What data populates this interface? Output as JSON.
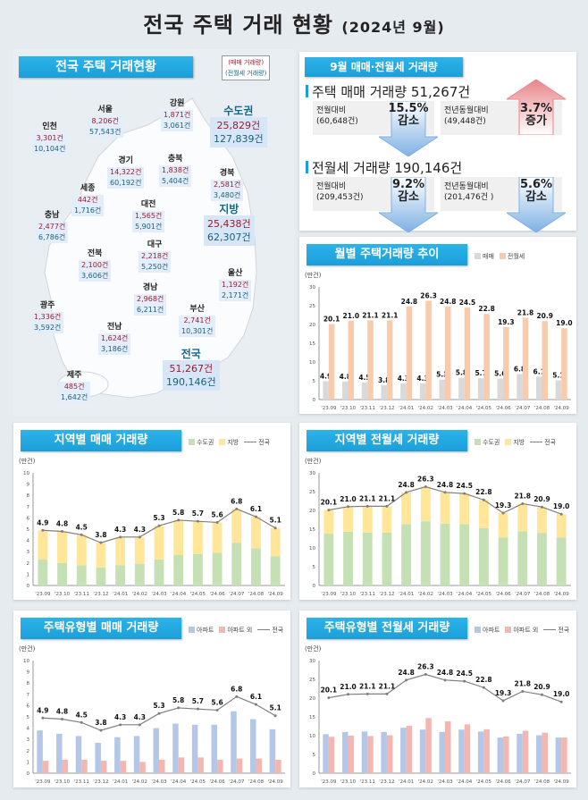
{
  "title": {
    "main": "전국 주택 거래 현황",
    "period": "(2024년 9월)"
  },
  "map": {
    "heading": "전국 주택 거래현황",
    "legend": {
      "sale": "(매매 거래량)",
      "rent": "(전월세 거래량)"
    },
    "regions": [
      {
        "name": "서울",
        "sale": "8,206건",
        "rent": "57,543건"
      },
      {
        "name": "인천",
        "sale": "3,301건",
        "rent": "10,104건"
      },
      {
        "name": "강원",
        "sale": "1,871건",
        "rent": "3,061건"
      },
      {
        "name": "경기",
        "sale": "14,322건",
        "rent": "60,192건"
      },
      {
        "name": "충북",
        "sale": "1,838건",
        "rent": "5,404건"
      },
      {
        "name": "경북",
        "sale": "2,581건",
        "rent": "3,480건"
      },
      {
        "name": "세종",
        "sale": "442건",
        "rent": "1,716건"
      },
      {
        "name": "대전",
        "sale": "1,565건",
        "rent": "5,901건"
      },
      {
        "name": "충남",
        "sale": "2,477건",
        "rent": "6,786건"
      },
      {
        "name": "대구",
        "sale": "2,218건",
        "rent": "5,250건"
      },
      {
        "name": "전북",
        "sale": "2,100건",
        "rent": "3,606건"
      },
      {
        "name": "울산",
        "sale": "1,192건",
        "rent": "2,171건"
      },
      {
        "name": "경남",
        "sale": "2,968건",
        "rent": "6,211건"
      },
      {
        "name": "광주",
        "sale": "1,336건",
        "rent": "3,592건"
      },
      {
        "name": "부산",
        "sale": "2,741건",
        "rent": "10,301건"
      },
      {
        "name": "전남",
        "sale": "1,624건",
        "rent": "3,186건"
      },
      {
        "name": "제주",
        "sale": "485건",
        "rent": "1,642건"
      }
    ],
    "totals": [
      {
        "name": "수도권",
        "sale": "25,829건",
        "rent": "127,839건"
      },
      {
        "name": "지방",
        "sale": "25,438건",
        "rent": "62,307건"
      },
      {
        "name": "전국",
        "sale": "51,267건",
        "rent": "190,146건"
      }
    ]
  },
  "summary": {
    "heading": "9월 매매·전월세 거래량",
    "sale": {
      "title": "주택 매매 거래량 51,267건",
      "mom": {
        "label": "전월대비",
        "base": "(60,648건)",
        "pct": "15.5%",
        "dir": "감소"
      },
      "yoy": {
        "label": "전년동월대비",
        "base": "(49,448건)",
        "pct": "3.7%",
        "dir": "증가"
      }
    },
    "rent": {
      "title": "전월세 거래량 190,146건",
      "mom": {
        "label": "전월대비",
        "base": "(209,453건)",
        "pct": "9.2%",
        "dir": "감소"
      },
      "yoy": {
        "label": "전년동월대비",
        "base": "(201,476건 )",
        "pct": "5.6%",
        "dir": "감소"
      }
    },
    "colors": {
      "up": "#e8868b",
      "down": "#7fb1e3"
    }
  },
  "chart_data": [
    {
      "title": "월별 주택거래량 추이",
      "type": "bar",
      "unit": "(만건)",
      "ylim": [
        0,
        30
      ],
      "yticks": [
        0,
        5,
        10,
        15,
        20,
        25,
        30
      ],
      "categories": [
        "'23.09",
        "'23.10",
        "'23.11",
        "'23.12",
        "'24.01",
        "'24.02",
        "'24.03",
        "'24.04",
        "'24.05",
        "'24.06",
        "'24.07",
        "'24.08",
        "'24.09"
      ],
      "series": [
        {
          "name": "매매",
          "color": "#d9d9d9",
          "values": [
            4.9,
            4.8,
            4.5,
            3.8,
            4.3,
            4.3,
            5.3,
            5.8,
            5.7,
            5.6,
            6.8,
            6.1,
            5.1
          ]
        },
        {
          "name": "전월세",
          "color": "#f8cbad",
          "values": [
            20.1,
            21.0,
            21.1,
            21.1,
            24.8,
            26.3,
            24.8,
            24.5,
            22.8,
            19.3,
            21.8,
            20.9,
            19.0
          ]
        }
      ]
    },
    {
      "title": "지역별 매매 거래량",
      "type": "stacked-bar+line",
      "unit": "(만건)",
      "ylim": [
        0,
        10
      ],
      "yticks": [
        0,
        1,
        2,
        3,
        4,
        5,
        6,
        7,
        8,
        9,
        10
      ],
      "categories": [
        "'23.09",
        "'23.10",
        "'23.11",
        "'23.12",
        "'24.01",
        "'24.02",
        "'24.03",
        "'24.04",
        "'24.05",
        "'24.06",
        "'24.07",
        "'24.08",
        "'24.09"
      ],
      "series": [
        {
          "name": "수도권",
          "color": "#c5e0b4",
          "values": [
            2.3,
            2.0,
            1.8,
            1.6,
            1.8,
            1.9,
            2.3,
            2.7,
            2.8,
            2.9,
            3.8,
            3.3,
            2.6
          ]
        },
        {
          "name": "지방",
          "color": "#ffe699",
          "values": [
            2.6,
            2.8,
            2.7,
            2.2,
            2.5,
            2.4,
            3.0,
            3.1,
            2.9,
            2.7,
            3.0,
            2.8,
            2.5
          ]
        }
      ],
      "line": {
        "name": "전국",
        "color": "#7f7f7f",
        "values": [
          4.9,
          4.8,
          4.5,
          3.8,
          4.3,
          4.3,
          5.3,
          5.8,
          5.7,
          5.6,
          6.8,
          6.1,
          5.1
        ]
      }
    },
    {
      "title": "지역별 전월세 거래량",
      "type": "stacked-bar+line",
      "unit": "(만건)",
      "ylim": [
        0,
        30
      ],
      "yticks": [
        0,
        5,
        10,
        15,
        20,
        25,
        30
      ],
      "categories": [
        "'23.09",
        "'23.10",
        "'23.11",
        "'23.12",
        "'24.01",
        "'24.02",
        "'24.03",
        "'24.04",
        "'24.05",
        "'24.06",
        "'24.07",
        "'24.08",
        "'24.09"
      ],
      "series": [
        {
          "name": "수도권",
          "color": "#c5e0b4",
          "values": [
            13.8,
            14.3,
            14.1,
            14.1,
            16.3,
            17.1,
            16.5,
            16.3,
            15.3,
            12.8,
            14.4,
            14.0,
            12.8
          ]
        },
        {
          "name": "지방",
          "color": "#ffe699",
          "values": [
            6.3,
            6.7,
            7.0,
            7.0,
            8.5,
            9.2,
            8.3,
            8.2,
            7.5,
            6.5,
            7.4,
            6.9,
            6.2
          ]
        }
      ],
      "line": {
        "name": "전국",
        "color": "#7f7f7f",
        "values": [
          20.1,
          21.0,
          21.1,
          21.1,
          24.8,
          26.3,
          24.8,
          24.5,
          22.8,
          19.3,
          21.8,
          20.9,
          19.0
        ]
      }
    },
    {
      "title": "주택유형별 매매 거래량",
      "type": "bar+line",
      "unit": "(만건)",
      "ylim": [
        0,
        10
      ],
      "yticks": [
        0,
        1,
        2,
        3,
        4,
        5,
        6,
        7,
        8,
        9,
        10
      ],
      "categories": [
        "'23.09",
        "'23.10",
        "'23.11",
        "'23.12",
        "'24.01",
        "'24.02",
        "'24.03",
        "'24.04",
        "'24.05",
        "'24.06",
        "'24.07",
        "'24.08",
        "'24.09"
      ],
      "series": [
        {
          "name": "아파트",
          "color": "#b4c7e7",
          "values": [
            3.8,
            3.5,
            3.3,
            2.7,
            3.2,
            3.3,
            4.0,
            4.4,
            4.3,
            4.3,
            5.5,
            4.8,
            3.9
          ]
        },
        {
          "name": "아파트 외",
          "color": "#f4b6b0",
          "values": [
            1.1,
            1.2,
            1.2,
            1.1,
            1.1,
            1.0,
            1.2,
            1.4,
            1.4,
            1.2,
            1.3,
            1.3,
            1.2
          ]
        }
      ],
      "line": {
        "name": "전국",
        "color": "#7f7f7f",
        "values": [
          4.9,
          4.8,
          4.5,
          3.8,
          4.3,
          4.3,
          5.3,
          5.8,
          5.7,
          5.6,
          6.8,
          6.1,
          5.1
        ]
      }
    },
    {
      "title": "주택유형별 전월세 거래량",
      "type": "bar+line",
      "unit": "(만건)",
      "ylim": [
        0,
        30
      ],
      "yticks": [
        0,
        5,
        10,
        15,
        20,
        25,
        30
      ],
      "categories": [
        "'23.09",
        "'23.10",
        "'23.11",
        "'23.12",
        "'24.01",
        "'24.02",
        "'24.03",
        "'24.04",
        "'24.05",
        "'24.06",
        "'24.07",
        "'24.08",
        "'24.09"
      ],
      "series": [
        {
          "name": "아파트",
          "color": "#b4c7e7",
          "values": [
            10.4,
            11.0,
            11.1,
            11.0,
            12.1,
            11.6,
            11.0,
            11.6,
            11.1,
            9.5,
            10.5,
            10.1,
            9.5
          ]
        },
        {
          "name": "아파트 외",
          "color": "#f4b6b0",
          "values": [
            9.7,
            10.0,
            9.9,
            10.1,
            12.6,
            14.7,
            13.8,
            13.0,
            11.7,
            9.8,
            11.3,
            10.8,
            9.5
          ]
        }
      ],
      "line": {
        "name": "전국",
        "color": "#7f7f7f",
        "values": [
          20.1,
          21.0,
          21.1,
          21.1,
          24.8,
          26.3,
          24.8,
          24.5,
          22.8,
          19.3,
          21.8,
          20.9,
          19.0
        ]
      }
    }
  ]
}
